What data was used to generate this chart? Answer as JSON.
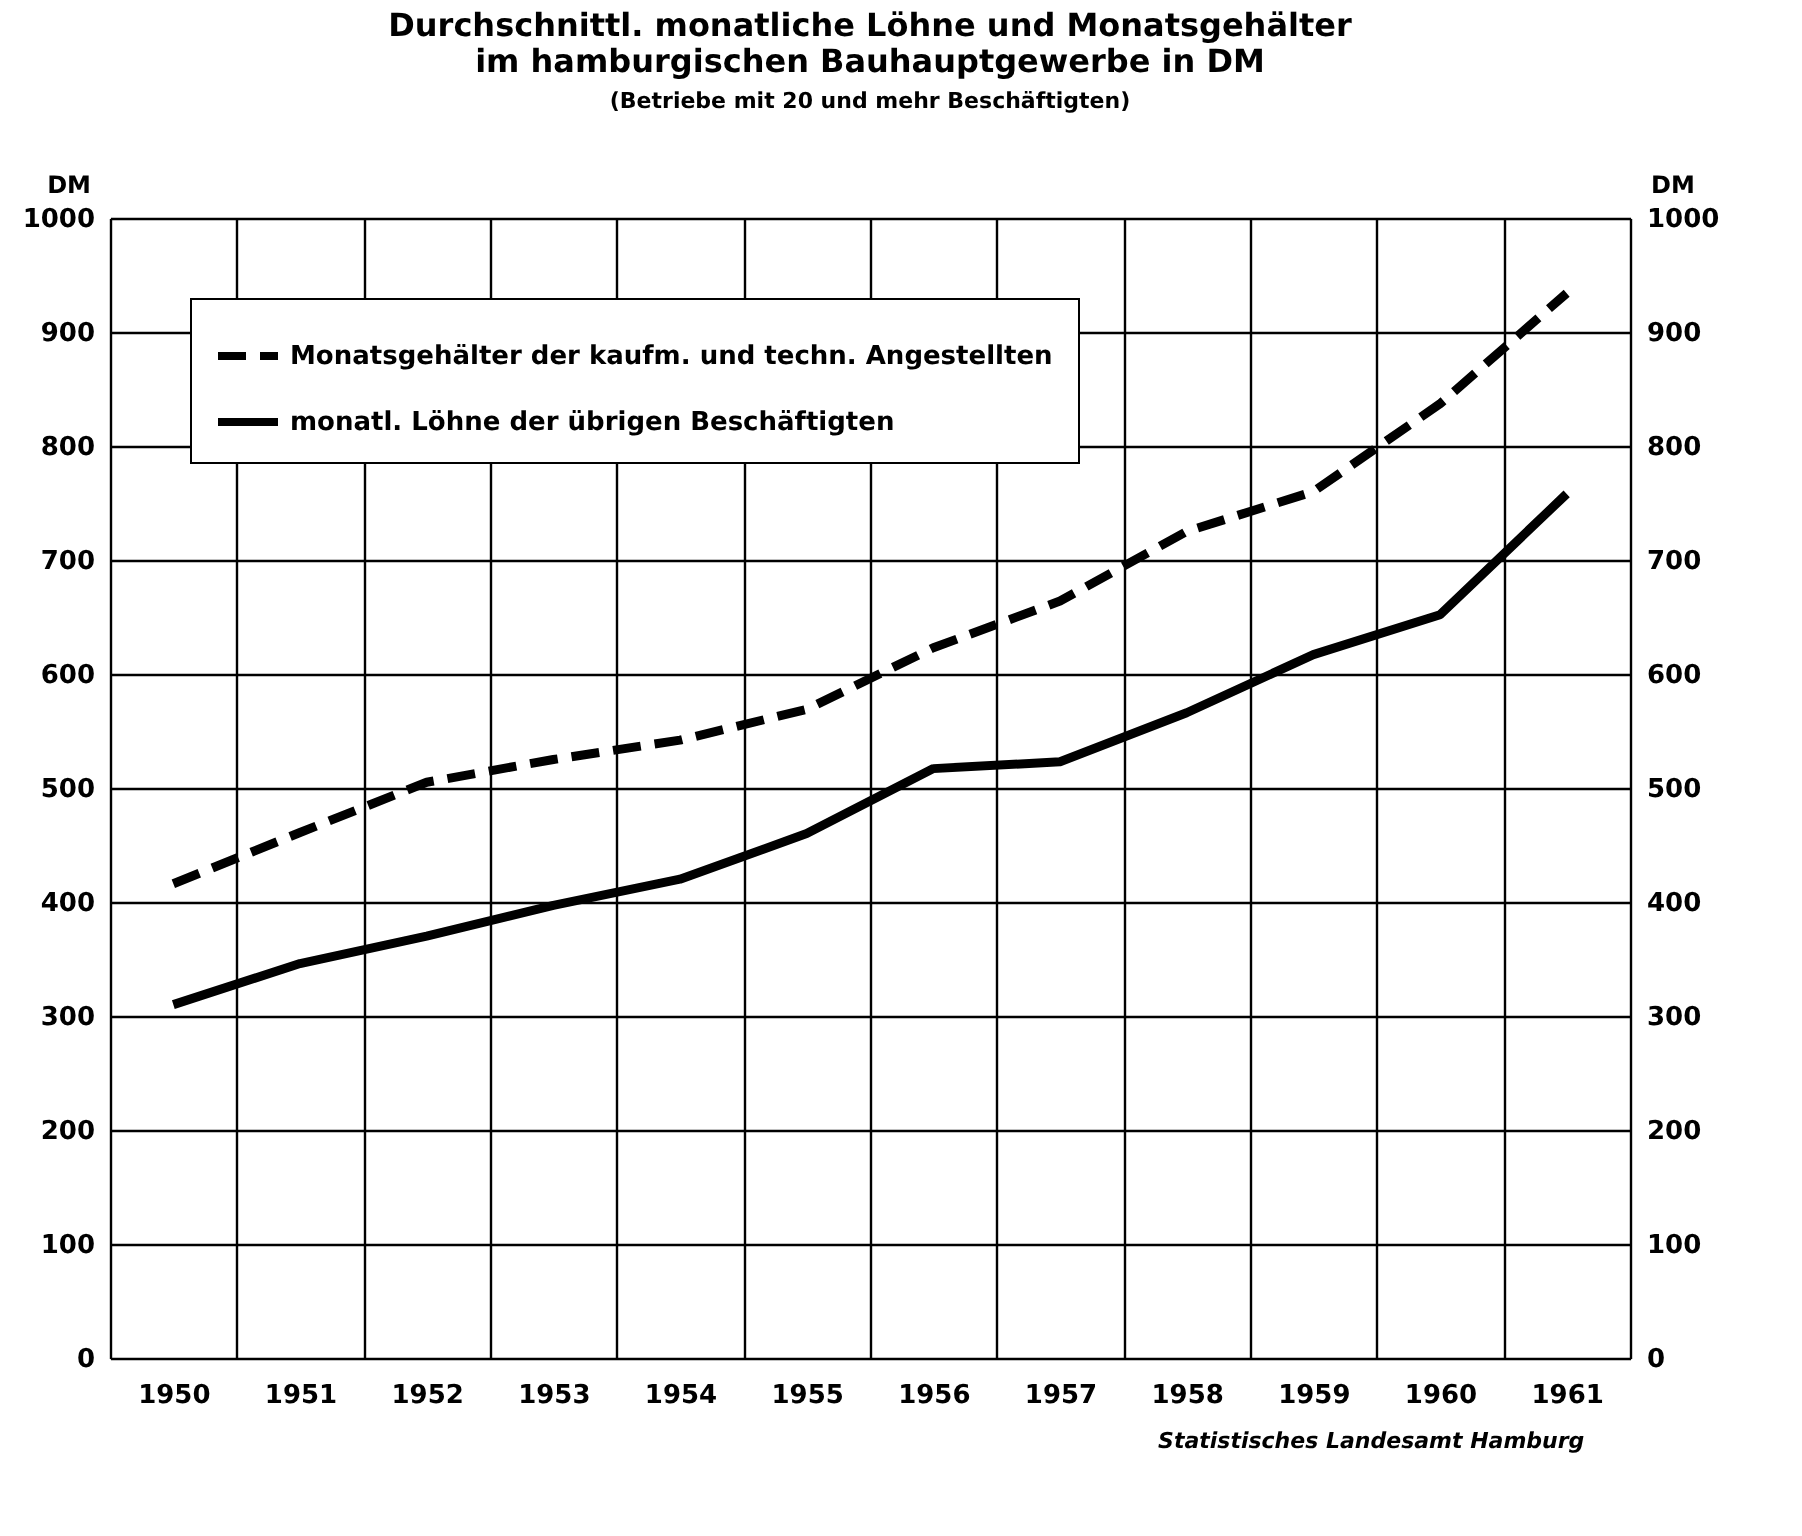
{
  "chart_data": {
    "type": "line",
    "title": [
      "Durchschnittl. monatliche Löhne und Monatsgehälter",
      "im hamburgischen Bauhauptgewerbe in DM"
    ],
    "subtitle": "(Betriebe mit 20 und mehr Beschäftigten)",
    "ylabel": "DM",
    "y2label": "DM",
    "categories": [
      "1950",
      "1951",
      "1952",
      "1953",
      "1954",
      "1955",
      "1956",
      "1957",
      "1958",
      "1959",
      "1960",
      "1961"
    ],
    "series": [
      {
        "name": "Monatsgehälter der kaufm. und techn. Angestellten",
        "color": "#000000",
        "line_style": "dashed",
        "values": [
          416,
          461,
          505,
          525,
          542,
          569,
          623,
          664,
          725,
          760,
          837,
          934
        ]
      },
      {
        "name": "monatl. Löhne der übrigen Beschäftigten",
        "color": "#000000",
        "line_style": "solid",
        "values": [
          310,
          346,
          370,
          397,
          420,
          460,
          517,
          523,
          566,
          617,
          652,
          758
        ]
      }
    ],
    "ylim": [
      0,
      1000
    ],
    "yticks": [
      0,
      100,
      200,
      300,
      400,
      500,
      600,
      700,
      800,
      900,
      1000
    ],
    "y2lim": [
      0,
      1000
    ],
    "y2ticks": [
      0,
      100,
      200,
      300,
      400,
      500,
      600,
      700,
      800,
      900,
      1000
    ],
    "grid": true,
    "legend": "top left",
    "marker": "none",
    "annotations": [
      "Statistisches Landesamt Hamburg"
    ]
  }
}
